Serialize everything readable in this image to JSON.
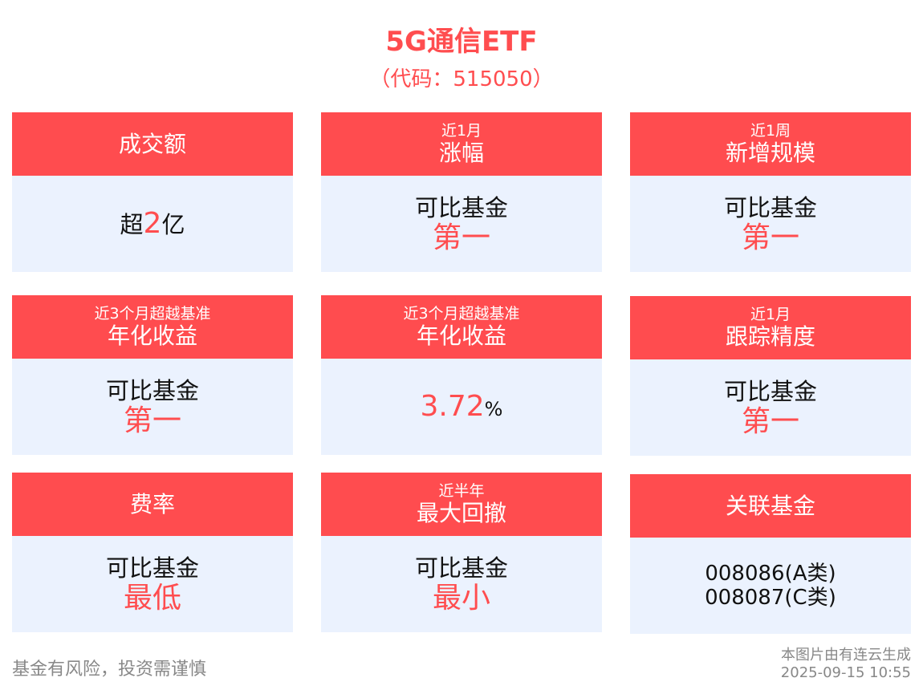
{
  "header": {
    "title": "5G通信ETF",
    "subtitle": "（代码：515050）"
  },
  "cards": [
    {
      "sub": "",
      "label": "成交额",
      "value_prefix": "超",
      "value_highlight": "2",
      "value_suffix": "亿"
    },
    {
      "sub": "近1月",
      "label": "涨幅",
      "line1": "可比基金",
      "highlight": "第一"
    },
    {
      "sub": "近1周",
      "label": "新增规模",
      "line1": "可比基金",
      "highlight": "第一"
    },
    {
      "sub": "近3个月超越基准",
      "label": "年化收益",
      "line1": "可比基金",
      "highlight": "第一"
    },
    {
      "sub": "近3个月超越基准",
      "label": "年化收益",
      "value_highlight": "3.72",
      "value_suffix": "%"
    },
    {
      "sub": "近1月",
      "label": "跟踪精度",
      "line1": "可比基金",
      "highlight": "第一"
    },
    {
      "sub": "",
      "label": "费率",
      "line1": "可比基金",
      "highlight": "最低"
    },
    {
      "sub": "近半年",
      "label": "最大回撤",
      "line1": "可比基金",
      "highlight": "最小"
    },
    {
      "sub": "",
      "label": "关联基金",
      "line1": "008086(A类)",
      "line2": "008087(C类)"
    }
  ],
  "footer": {
    "disclaimer": "基金有风险，投资需谨慎",
    "generator": "本图片由有连云生成",
    "timestamp": "2025-09-15 10:55"
  },
  "colors": {
    "accent": "#ff4c4f",
    "card_body": "#ebf2fe"
  }
}
